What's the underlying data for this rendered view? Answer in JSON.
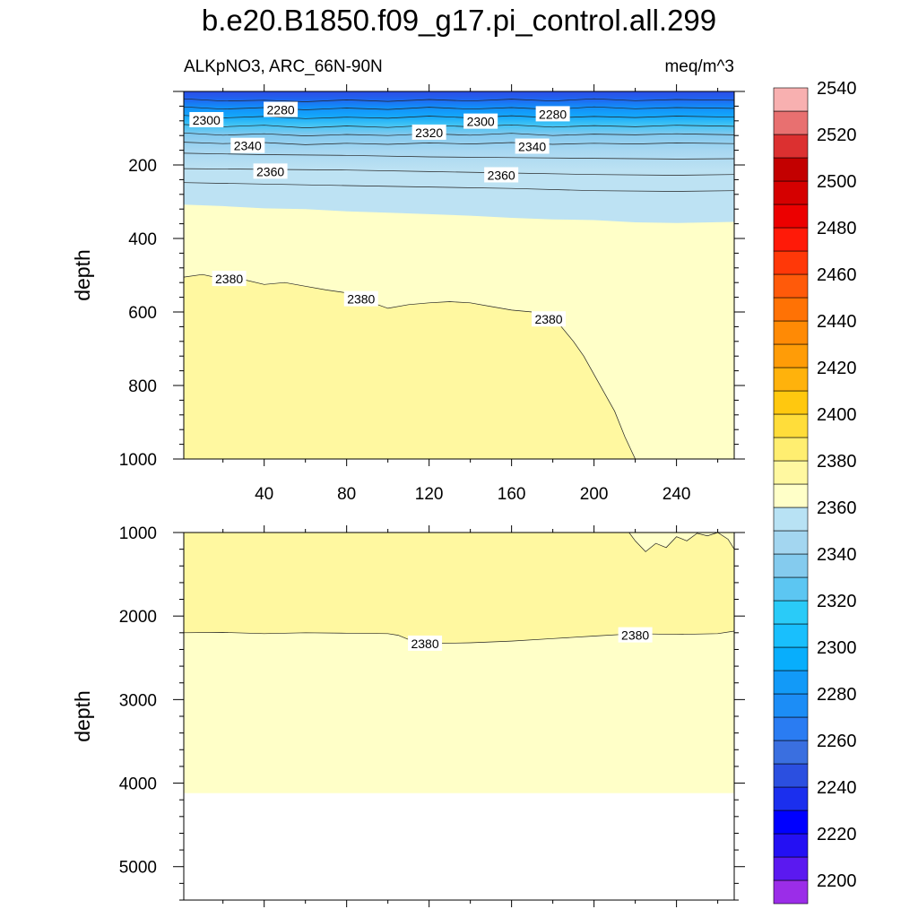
{
  "title": "b.e20.B1850.f09_g17.pi_control.all.299",
  "subtitle_left": "ALKpNO3, ARC_66N-90N",
  "subtitle_right": "meq/m^3",
  "chart_data": [
    {
      "type": "heatmap",
      "panel": "upper",
      "ylabel": "depth",
      "x_ticks": [
        40,
        80,
        120,
        160,
        200,
        240
      ],
      "xlim": [
        1,
        268
      ],
      "y_ticks": [
        200,
        400,
        600,
        800,
        1000
      ],
      "ylim": [
        0,
        1000
      ],
      "y_reversed": true,
      "contour_interval": 10,
      "isolines": [
        {
          "value": 2280,
          "x": [
            1,
            20,
            40,
            60,
            80,
            100,
            120,
            140,
            160,
            180,
            200,
            220,
            240,
            268
          ],
          "y": [
            20,
            26,
            24,
            28,
            23,
            27,
            22,
            26,
            21,
            26,
            20,
            25,
            22,
            24
          ]
        },
        {
          "value": 2290,
          "x": [
            1,
            20,
            40,
            60,
            80,
            100,
            120,
            140,
            160,
            180,
            200,
            220,
            240,
            268
          ],
          "y": [
            42,
            48,
            44,
            50,
            45,
            49,
            43,
            48,
            44,
            49,
            42,
            47,
            44,
            46
          ]
        },
        {
          "value": 2300,
          "x": [
            1,
            20,
            40,
            60,
            80,
            100,
            120,
            140,
            160,
            180,
            200,
            220,
            240,
            268
          ],
          "y": [
            65,
            72,
            68,
            74,
            70,
            73,
            67,
            72,
            66,
            72,
            68,
            71,
            67,
            70
          ]
        },
        {
          "value": 2310,
          "x": [
            1,
            20,
            40,
            60,
            80,
            100,
            120,
            140,
            160,
            180,
            200,
            220,
            240,
            268
          ],
          "y": [
            90,
            96,
            92,
            99,
            94,
            98,
            92,
            96,
            91,
            97,
            93,
            96,
            92,
            95
          ]
        },
        {
          "value": 2320,
          "x": [
            1,
            20,
            40,
            60,
            80,
            100,
            120,
            140,
            160,
            180,
            200,
            220,
            240,
            268
          ],
          "y": [
            113,
            119,
            115,
            121,
            117,
            120,
            115,
            119,
            114,
            120,
            116,
            118,
            115,
            118
          ]
        },
        {
          "value": 2330,
          "x": [
            1,
            20,
            40,
            60,
            80,
            100,
            120,
            140,
            160,
            180,
            200,
            220,
            240,
            268
          ],
          "y": [
            138,
            142,
            139,
            145,
            141,
            144,
            140,
            143,
            139,
            144,
            141,
            143,
            140,
            142
          ]
        },
        {
          "value": 2340,
          "x": [
            1,
            40,
            80,
            120,
            160,
            200,
            240,
            268
          ],
          "y": [
            168,
            172,
            174,
            178,
            180,
            182,
            184,
            183
          ]
        },
        {
          "value": 2350,
          "x": [
            1,
            40,
            80,
            120,
            160,
            200,
            240,
            268
          ],
          "y": [
            210,
            212,
            214,
            218,
            222,
            226,
            228,
            226
          ]
        },
        {
          "value": 2360,
          "x": [
            1,
            40,
            80,
            120,
            160,
            200,
            240,
            268
          ],
          "y": [
            248,
            252,
            256,
            260,
            264,
            270,
            272,
            270
          ]
        },
        {
          "value": 2370,
          "x": [
            1,
            20,
            40,
            60,
            80,
            100,
            120,
            140,
            160,
            180,
            200,
            220,
            240,
            268
          ],
          "y": [
            308,
            312,
            318,
            320,
            326,
            330,
            334,
            338,
            344,
            348,
            350,
            356,
            358,
            355
          ]
        },
        {
          "value": 2380,
          "x": [
            1,
            10,
            20,
            30,
            40,
            50,
            60,
            70,
            80,
            90,
            100,
            110,
            120,
            130,
            140,
            150,
            160,
            170,
            180,
            190,
            195,
            200,
            205,
            210,
            215,
            220
          ],
          "y": [
            505,
            498,
            510,
            512,
            525,
            520,
            530,
            540,
            548,
            570,
            590,
            580,
            575,
            572,
            575,
            585,
            595,
            600,
            612,
            680,
            720,
            770,
            820,
            870,
            940,
            1000
          ]
        }
      ],
      "contour_labels": [
        {
          "value": "2280",
          "x": 48,
          "y": 50
        },
        {
          "value": "2300",
          "x": 12,
          "y": 78
        },
        {
          "value": "2340",
          "x": 32,
          "y": 148
        },
        {
          "value": "2360",
          "x": 43,
          "y": 218
        },
        {
          "value": "2320",
          "x": 120,
          "y": 112
        },
        {
          "value": "2300",
          "x": 145,
          "y": 82
        },
        {
          "value": "2280",
          "x": 180,
          "y": 62
        },
        {
          "value": "2340",
          "x": 170,
          "y": 150
        },
        {
          "value": "2360",
          "x": 155,
          "y": 228
        },
        {
          "value": "2380",
          "x": 23,
          "y": 510
        },
        {
          "value": "2380",
          "x": 87,
          "y": 565
        },
        {
          "value": "2380",
          "x": 178,
          "y": 620
        }
      ]
    },
    {
      "type": "heatmap",
      "panel": "lower",
      "ylabel": "depth",
      "xlim": [
        1,
        268
      ],
      "y_ticks": [
        1000,
        2000,
        3000,
        4000,
        5000
      ],
      "ylim": [
        1000,
        5400
      ],
      "y_reversed": true,
      "sea_floor_depth": 4120,
      "isolines": [
        {
          "value": 2380,
          "x": [
            1,
            20,
            40,
            60,
            80,
            100,
            105,
            110,
            120,
            140,
            160,
            180,
            200,
            220,
            240,
            260,
            268
          ],
          "y": [
            2200,
            2195,
            2210,
            2200,
            2205,
            2210,
            2230,
            2280,
            2330,
            2320,
            2300,
            2270,
            2240,
            2210,
            2220,
            2210,
            2180
          ]
        },
        {
          "value": 2380,
          "x": [
            217,
            220,
            225,
            230,
            235,
            240,
            245,
            250,
            255,
            260,
            265,
            268
          ],
          "y": [
            1000,
            1100,
            1230,
            1130,
            1180,
            1050,
            1100,
            1010,
            1040,
            1000,
            1080,
            1200
          ]
        }
      ],
      "contour_labels": [
        {
          "value": "2380",
          "x": 118,
          "y": 2330
        },
        {
          "value": "2380",
          "x": 220,
          "y": 2230
        }
      ]
    }
  ],
  "colorbar": {
    "labels": [
      "2200",
      "2220",
      "2240",
      "2260",
      "2280",
      "2300",
      "2320",
      "2340",
      "2360",
      "2380",
      "2400",
      "2420",
      "2440",
      "2460",
      "2480",
      "2500",
      "2520",
      "2540"
    ],
    "colors": [
      "#9b2de8",
      "#5b19f0",
      "#2410f3",
      "#0000ff",
      "#1b2fee",
      "#2b4fe0",
      "#3a6fe0",
      "#2a7cf2",
      "#1c8df6",
      "#129af8",
      "#08aefc",
      "#19bffd",
      "#2acbf8",
      "#5cc6f2",
      "#84cbee",
      "#a3d6f0",
      "#b8e2f4",
      "#ffffc8",
      "#fff8a0",
      "#ffee70",
      "#ffdd3a",
      "#ffc80f",
      "#ffb20c",
      "#ff9c07",
      "#ff8a05",
      "#ff7205",
      "#ff5a0a",
      "#ff3808",
      "#ff1a08",
      "#ec0000",
      "#d50000",
      "#c30000",
      "#dc3030",
      "#e87070",
      "#f8b0b0"
    ]
  }
}
